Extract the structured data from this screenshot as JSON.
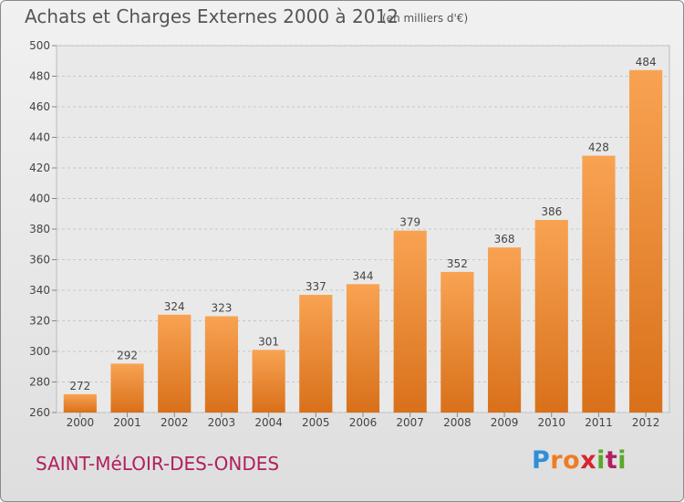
{
  "header": {
    "title": "Achats et Charges Externes 2000 à 2012",
    "unit": "(en milliers d'€)"
  },
  "footer": {
    "commune": "SAINT-MéLOIR-DES-ONDES",
    "logo": {
      "letters": [
        "P",
        "r",
        "o",
        "x",
        "i",
        "t",
        "i"
      ],
      "colors": [
        "#2e8fd8",
        "#f07c22",
        "#f07c22",
        "#d8242c",
        "#5aa82a",
        "#b0205e",
        "#5aa82a"
      ]
    }
  },
  "chart_data": {
    "type": "bar",
    "title": "Achats et Charges Externes 2000 à 2012",
    "categories": [
      "2000",
      "2001",
      "2002",
      "2003",
      "2004",
      "2005",
      "2006",
      "2007",
      "2008",
      "2009",
      "2010",
      "2011",
      "2012"
    ],
    "values": [
      272,
      292,
      324,
      323,
      301,
      337,
      344,
      379,
      352,
      368,
      386,
      428,
      484
    ],
    "ylim": [
      260,
      500
    ],
    "yticks": [
      260,
      280,
      300,
      320,
      340,
      360,
      380,
      400,
      420,
      440,
      460,
      480,
      500
    ],
    "grid": true,
    "bar_color": "#f08a2a"
  }
}
